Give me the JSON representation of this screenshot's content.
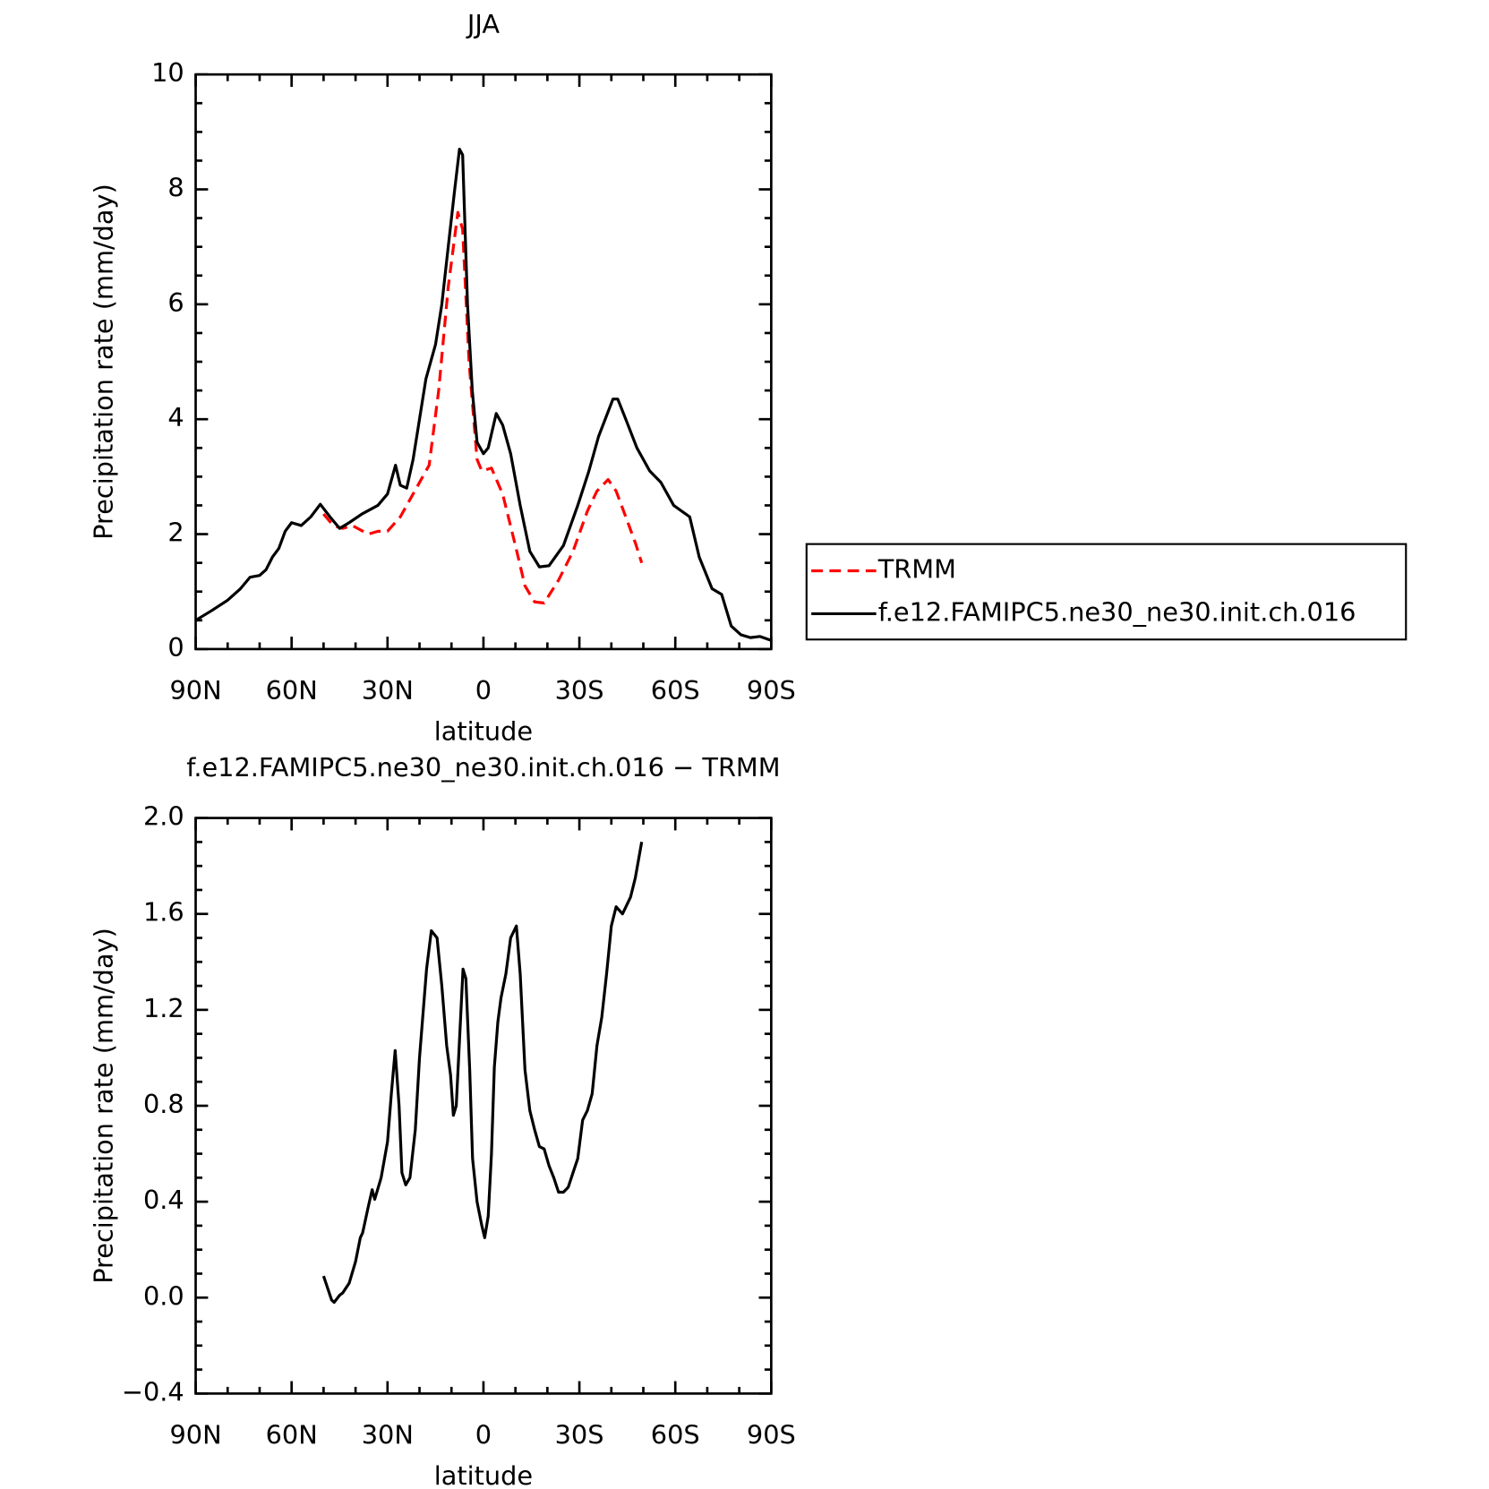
{
  "chart_data": [
    {
      "type": "line",
      "title": "JJA",
      "xlabel": "latitude",
      "ylabel": "Precipitation rate (mm/day)",
      "xlim": [
        90,
        -90
      ],
      "ylim": [
        0,
        10
      ],
      "xticks": [
        {
          "value": 90,
          "label": "90N"
        },
        {
          "value": 60,
          "label": "60N"
        },
        {
          "value": 30,
          "label": "30N"
        },
        0,
        {
          "value": -30,
          "label": "30S"
        },
        {
          "value": -60,
          "label": "60S"
        },
        {
          "value": -90,
          "label": "90S"
        }
      ],
      "yticks": [
        0,
        2,
        4,
        6,
        8,
        10
      ],
      "legend": "right",
      "series": [
        {
          "name": "TRMM",
          "color": "#ff0000",
          "dash": true,
          "x": [
            50,
            47,
            44,
            41,
            36,
            33,
            30,
            26,
            22,
            17,
            14,
            11,
            8,
            6.5,
            4.5,
            2,
            0.5,
            -2.5,
            -6,
            -10,
            -13,
            -16,
            -19,
            -23.5,
            -28,
            -32.5,
            -35.5,
            -39,
            -41.5,
            -44.5,
            -47.5,
            -49.5
          ],
          "values": [
            2.35,
            2.15,
            2.1,
            2.15,
            2.0,
            2.05,
            2.05,
            2.3,
            2.7,
            3.2,
            4.5,
            6.3,
            7.6,
            7.3,
            5.0,
            3.3,
            3.1,
            3.15,
            2.7,
            1.8,
            1.1,
            0.82,
            0.8,
            1.2,
            1.7,
            2.4,
            2.75,
            2.95,
            2.75,
            2.3,
            1.85,
            1.5
          ]
        },
        {
          "name": "f.e12.FAMIPC5.ne30_ne30.init.ch.016",
          "color": "#000000",
          "dash": false,
          "x": [
            90,
            85,
            80,
            76,
            73,
            70,
            68,
            66,
            64,
            62,
            60,
            57,
            54,
            51,
            48,
            45,
            42,
            38,
            33,
            30,
            27.5,
            26,
            24,
            22,
            20,
            18,
            15,
            13,
            11,
            9,
            7.5,
            6.5,
            5,
            3.5,
            2,
            0,
            -1.5,
            -4,
            -6,
            -8.5,
            -11.5,
            -14.5,
            -17.5,
            -20.5,
            -25,
            -29.5,
            -33,
            -36,
            -40.5,
            -42,
            -44.5,
            -48,
            -52,
            -55.5,
            -59.5,
            -64.5,
            -67.5,
            -71.5,
            -74.5,
            -77.5,
            -80.5,
            -83.5,
            -86.5,
            -90
          ],
          "values": [
            0.5,
            0.67,
            0.85,
            1.05,
            1.25,
            1.28,
            1.38,
            1.6,
            1.75,
            2.05,
            2.2,
            2.15,
            2.3,
            2.52,
            2.3,
            2.1,
            2.2,
            2.35,
            2.5,
            2.7,
            3.2,
            2.85,
            2.8,
            3.3,
            4.0,
            4.7,
            5.3,
            6.0,
            7.0,
            8.0,
            8.7,
            8.6,
            6.0,
            4.5,
            3.6,
            3.4,
            3.5,
            4.1,
            3.9,
            3.4,
            2.5,
            1.7,
            1.43,
            1.45,
            1.8,
            2.5,
            3.1,
            3.7,
            4.35,
            4.35,
            4.0,
            3.5,
            3.1,
            2.9,
            2.5,
            2.3,
            1.6,
            1.05,
            0.95,
            0.4,
            0.25,
            0.2,
            0.22,
            0.15
          ]
        }
      ]
    },
    {
      "type": "line",
      "title": "f.e12.FAMIPC5.ne30_ne30.init.ch.016 − TRMM",
      "xlabel": "latitude",
      "ylabel": "Precipitation rate (mm/day)",
      "xlim": [
        90,
        -90
      ],
      "ylim": [
        -0.4,
        2.0
      ],
      "xticks": [
        {
          "value": 90,
          "label": "90N"
        },
        {
          "value": 60,
          "label": "60N"
        },
        {
          "value": 30,
          "label": "30N"
        },
        0,
        {
          "value": -30,
          "label": "30S"
        },
        {
          "value": -60,
          "label": "60S"
        },
        {
          "value": -90,
          "label": "90S"
        }
      ],
      "yticks": [
        {
          "value": -0.4,
          "label": "−0.4"
        },
        {
          "value": 0,
          "label": "0.0"
        },
        0.4,
        0.8,
        1.2,
        1.6,
        {
          "value": 2.0,
          "label": "2.0"
        }
      ],
      "series": [
        {
          "color": "#000000",
          "dash": false,
          "x": [
            50,
            47.5,
            46.7,
            45,
            44,
            42,
            40,
            38.5,
            37.8,
            36,
            34.8,
            34,
            32,
            30,
            28.8,
            27.6,
            26.4,
            25.5,
            24.3,
            23,
            21.3,
            20,
            17.8,
            16.3,
            14.5,
            13,
            11.5,
            10.3,
            9.4,
            8.5,
            6.4,
            5.5,
            4.3,
            3.4,
            2,
            0.5,
            -0.4,
            -1.5,
            -2.5,
            -3.4,
            -4.5,
            -5.5,
            -7,
            -8.5,
            -10.3,
            -11.5,
            -13,
            -14.5,
            -16,
            -17.5,
            -19,
            -20.5,
            -22,
            -23.5,
            -25,
            -26.5,
            -28,
            -29.5,
            -31,
            -32.5,
            -34,
            -35.5,
            -37,
            -38.5,
            -40,
            -41.5,
            -43.5,
            -46,
            -47.5,
            -49.5
          ],
          "values": [
            0.09,
            -0.01,
            -0.02,
            0.01,
            0.02,
            0.06,
            0.15,
            0.25,
            0.27,
            0.38,
            0.45,
            0.41,
            0.5,
            0.65,
            0.85,
            1.03,
            0.8,
            0.52,
            0.47,
            0.5,
            0.7,
            1.0,
            1.37,
            1.53,
            1.5,
            1.3,
            1.05,
            0.93,
            0.76,
            0.8,
            1.37,
            1.33,
            0.95,
            0.58,
            0.4,
            0.3,
            0.25,
            0.34,
            0.6,
            0.96,
            1.15,
            1.25,
            1.35,
            1.5,
            1.55,
            1.35,
            0.95,
            0.78,
            0.7,
            0.63,
            0.62,
            0.55,
            0.5,
            0.44,
            0.44,
            0.46,
            0.52,
            0.58,
            0.74,
            0.78,
            0.85,
            1.05,
            1.17,
            1.35,
            1.55,
            1.63,
            1.6,
            1.67,
            1.75,
            1.9
          ]
        }
      ]
    }
  ]
}
